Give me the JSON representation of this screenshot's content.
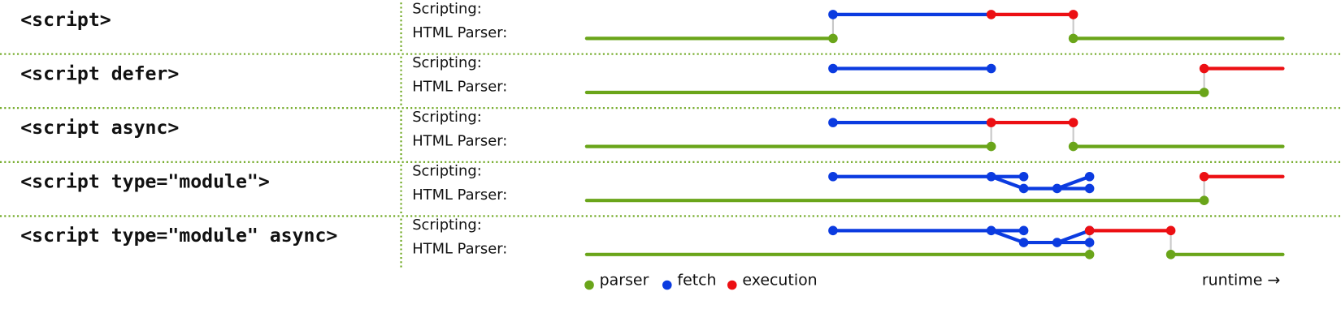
{
  "rows": [
    {
      "label": "<script>"
    },
    {
      "label": "<script defer>"
    },
    {
      "label": "<script async>"
    },
    {
      "label": "<script type=\"module\">"
    },
    {
      "label": "<script type=\"module\" async>"
    }
  ],
  "lanes": {
    "scripting": "Scripting:",
    "parser": "HTML Parser:"
  },
  "legend": [
    "parser",
    "fetch",
    "execution"
  ],
  "axis_note": "runtime →"
}
